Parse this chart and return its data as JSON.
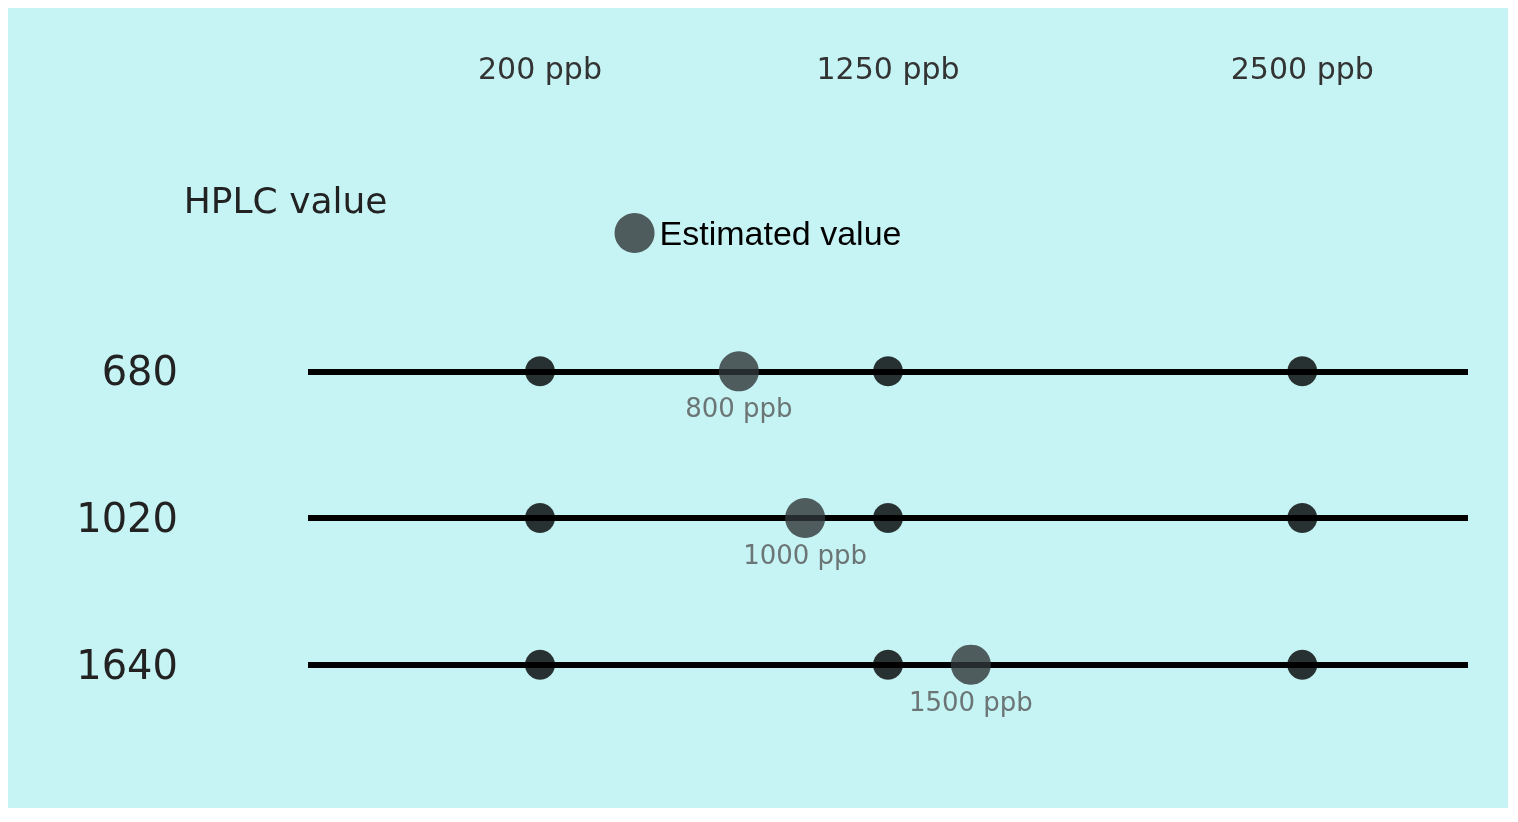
{
  "chart_data": {
    "type": "scatter",
    "orientation": "horizontal",
    "ylabel": "HPLC value",
    "categories": [
      "680",
      "1020",
      "1640"
    ],
    "series": [
      {
        "name": "Estimated value",
        "color": "#2f3638",
        "values": [
          800,
          1000,
          1500
        ],
        "value_labels": [
          "800 ppb",
          "1000 ppb",
          "1500 ppb"
        ]
      },
      {
        "color": "#000000",
        "values": [
          200,
          200,
          200
        ]
      },
      {
        "color": "#000000",
        "values": [
          1250,
          1250,
          1250
        ]
      },
      {
        "color": "#000000",
        "values": [
          2500,
          2500,
          2500
        ]
      }
    ],
    "xlim": [
      -500,
      3000
    ],
    "xticks": [
      {
        "value": 200,
        "label": "200 ppb"
      },
      {
        "value": 1250,
        "label": "1250 ppb"
      },
      {
        "value": 2500,
        "label": "2500 ppb"
      }
    ],
    "ref_lines": [
      {
        "axis": "y",
        "value": "680",
        "color": "#000000"
      },
      {
        "axis": "y",
        "value": "1020",
        "color": "#000000"
      },
      {
        "axis": "y",
        "value": "1640",
        "color": "#000000"
      }
    ],
    "marker": "circle",
    "legend": "top"
  }
}
